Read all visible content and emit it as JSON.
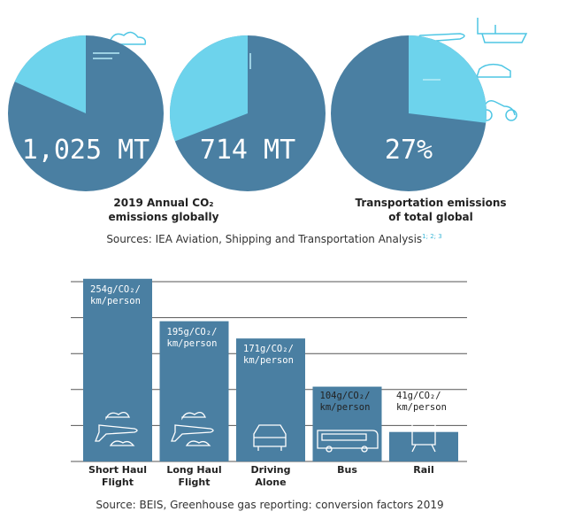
{
  "stats": [
    {
      "text": "1,025 MT"
    },
    {
      "text": "714 MT"
    },
    {
      "text": "27%"
    }
  ],
  "captions": [
    "2019 Annual CO₂\nemissions globally",
    "Transportation emissions\nof total global"
  ],
  "sources_top": {
    "text": "Sources: IEA Aviation, Shipping and Transportation Analysis",
    "refs": "1; 2; 3"
  },
  "chart_data": {
    "type": "bar",
    "categories": [
      "Short Haul\nFlight",
      "Long Haul\nFlight",
      "Driving\nAlone",
      "Bus",
      "Rail"
    ],
    "values": [
      254,
      195,
      171,
      104,
      41
    ],
    "value_labels": [
      "254g/CO₂/\nkm/person",
      "195g/CO₂/\nkm/person",
      "171g/CO₂/\nkm/person",
      "104g/CO₂/\nkm/person",
      "41g/CO₂/\nkm/person"
    ],
    "color": "#4a7fa2",
    "ylim": [
      0,
      250
    ],
    "yticks": [
      0,
      50,
      100,
      150,
      200,
      250
    ],
    "grid": true,
    "source": "Source: BEIS, Greenhouse gas reporting: conversion factors 2019"
  }
}
